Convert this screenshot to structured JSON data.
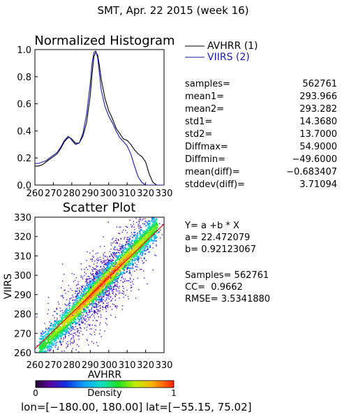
{
  "header": {
    "title": "SMT,  Apr. 22 2015 (week 16)"
  },
  "colors": {
    "avhrr": "#000000",
    "viirs": "#1a1aa8",
    "fit_line": "#e01010"
  },
  "histogram": {
    "title": "Normalized Histogram",
    "legend": [
      {
        "label": "AVHRR (1)",
        "color": "#000000"
      },
      {
        "label": "VIIRS (2)",
        "color": "#1a1aa8"
      }
    ],
    "x_ticks": [
      "260",
      "270",
      "280",
      "290",
      "300",
      "310",
      "320",
      "330"
    ],
    "y_ticks": [
      "0.0",
      "0.2",
      "0.4",
      "0.6",
      "0.8",
      "1.0"
    ]
  },
  "stats": [
    {
      "label": "samples=",
      "value": "562761"
    },
    {
      "label": "mean1=",
      "value": "293.966"
    },
    {
      "label": "mean2=",
      "value": "293.282"
    },
    {
      "label": "std1=",
      "value": "14.3680"
    },
    {
      "label": "std2=",
      "value": "13.7000"
    },
    {
      "label": "Diffmax=",
      "value": "54.9000"
    },
    {
      "label": "Diffmin=",
      "value": "−49.6000"
    },
    {
      "label": "mean(diff)=",
      "value": "−0.683407"
    },
    {
      "label": "stddev(diff)=",
      "value": "3.71094"
    }
  ],
  "scatter": {
    "title": "Scatter Plot",
    "xlabel": "AVHRR",
    "ylabel": "VIIRS",
    "x_ticks": [
      "260",
      "270",
      "280",
      "290",
      "300",
      "310",
      "320",
      "330"
    ],
    "y_ticks": [
      "260",
      "270",
      "280",
      "290",
      "300",
      "310",
      "320",
      "330"
    ]
  },
  "fit": {
    "equation": "Y= a +b * X",
    "a_text": "a= 22.472079",
    "b_text": "b= 0.92123067",
    "samples_text": "Samples= 562761",
    "cc_text": "CC=  0.9662",
    "rmse_text": "RMSE= 3.5341880"
  },
  "colorbar": {
    "label": "Density",
    "min_label": "0",
    "max_label": "1"
  },
  "footer": {
    "text": "lon=[−180.00, 180.00] lat=[−55.15, 75.02]"
  },
  "chart_data": [
    {
      "type": "line",
      "title": "Normalized Histogram",
      "xlabel": "",
      "ylabel": "",
      "xlim": [
        260,
        330
      ],
      "ylim": [
        0,
        1
      ],
      "x": [
        260,
        262,
        264,
        266,
        268,
        270,
        272,
        274,
        276,
        278,
        279,
        280,
        282,
        284,
        286,
        288,
        290,
        291,
        292,
        293,
        294,
        295,
        296,
        298,
        300,
        302,
        304,
        306,
        308,
        310,
        312,
        314,
        316,
        318,
        320,
        322,
        324,
        326,
        328,
        330
      ],
      "series": [
        {
          "name": "AVHRR (1)",
          "color": "#000000",
          "values": [
            0.14,
            0.14,
            0.15,
            0.17,
            0.19,
            0.21,
            0.23,
            0.27,
            0.32,
            0.35,
            0.35,
            0.34,
            0.31,
            0.31,
            0.36,
            0.46,
            0.66,
            0.82,
            0.95,
            0.98,
            0.96,
            0.88,
            0.78,
            0.64,
            0.55,
            0.49,
            0.42,
            0.38,
            0.34,
            0.33,
            0.3,
            0.26,
            0.23,
            0.21,
            0.17,
            0.08,
            0.02,
            0.0,
            0.0,
            0.0
          ]
        },
        {
          "name": "VIIRS (2)",
          "color": "#1a1aa8",
          "values": [
            0.16,
            0.16,
            0.17,
            0.18,
            0.2,
            0.22,
            0.24,
            0.28,
            0.33,
            0.36,
            0.35,
            0.33,
            0.3,
            0.31,
            0.38,
            0.52,
            0.75,
            0.9,
            0.98,
            0.99,
            0.94,
            0.82,
            0.7,
            0.58,
            0.51,
            0.46,
            0.4,
            0.35,
            0.32,
            0.29,
            0.23,
            0.14,
            0.06,
            0.02,
            0.0,
            0.0,
            0.0,
            0.0,
            0.0,
            0.0
          ]
        }
      ]
    },
    {
      "type": "heatmap",
      "title": "Scatter Plot",
      "xlabel": "AVHRR",
      "ylabel": "VIIRS",
      "xlim": [
        260,
        330
      ],
      "ylim": [
        260,
        330
      ],
      "fit_line": {
        "a": 22.472079,
        "b": 0.92123067
      },
      "density_ridge": {
        "x_center": 296,
        "x_spread": 12,
        "y_scatter": 3.5
      },
      "colorbar_range": [
        0,
        1
      ]
    }
  ]
}
